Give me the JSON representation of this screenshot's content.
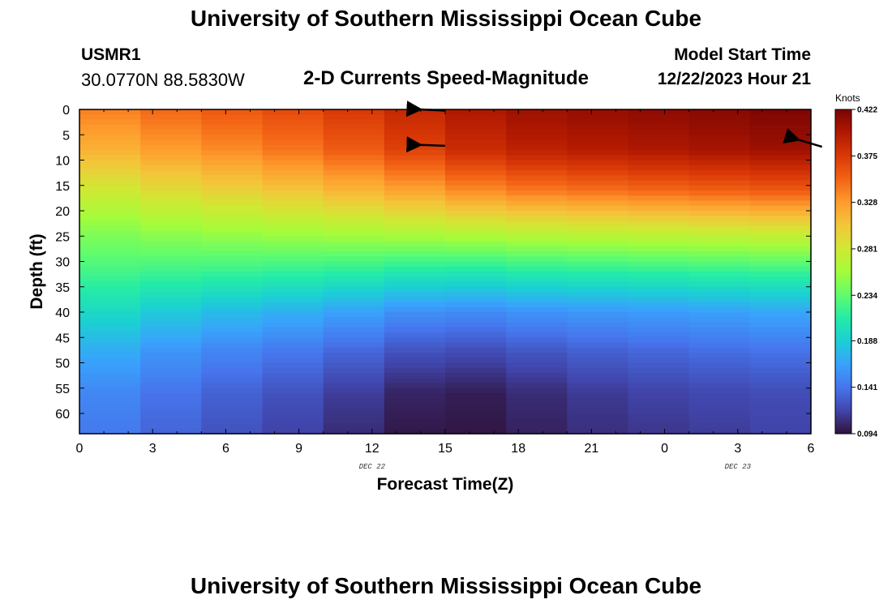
{
  "header": {
    "title": "University of Southern Mississippi Ocean Cube",
    "station": "USMR1",
    "coordinates": "30.0770N  88.5830W",
    "subtitle": "2-D Currents Speed-Magnitude",
    "model_start_label": "Model Start Time",
    "model_start_value": "12/22/2023 Hour 21"
  },
  "footer": {
    "title": "University of Southern Mississippi Ocean Cube"
  },
  "colors": {
    "colormap": [
      "#30123b",
      "#4145ab",
      "#4675ed",
      "#39a2fc",
      "#1bcfd4",
      "#24eca6",
      "#61fc6c",
      "#a4fc3b",
      "#d1e834",
      "#f3c63a",
      "#fe9b2d",
      "#f36315",
      "#d93806",
      "#b11901",
      "#7a0403"
    ]
  },
  "chart_data": {
    "type": "heatmap",
    "title": "2-D Currents Speed-Magnitude",
    "xlabel": "Forecast Time(Z)",
    "ylabel": "Depth (ft)",
    "x_tick_labels": [
      "0",
      "3",
      "6",
      "9",
      "12",
      "15",
      "18",
      "21",
      "0",
      "3",
      "6"
    ],
    "x_date_labels": [
      {
        "label": "DEC 22",
        "hour": 12
      },
      {
        "label": "DEC 23",
        "hour": 27
      }
    ],
    "x_range_hours": [
      0,
      30
    ],
    "y_ticks": [
      0,
      5,
      10,
      15,
      20,
      25,
      30,
      35,
      40,
      45,
      50,
      55,
      60
    ],
    "y_range": [
      0,
      64
    ],
    "colorbar": {
      "label": "Knots",
      "ticks": [
        "0.422",
        "0.375",
        "0.328",
        "0.281",
        "0.234",
        "0.188",
        "0.141",
        "0.094"
      ],
      "min": 0.094,
      "max": 0.422
    },
    "time_hours": [
      0,
      2.5,
      5,
      7.5,
      10,
      12.5,
      15,
      17.5,
      20,
      22.5,
      25,
      27.5,
      30
    ],
    "depth_ft": [
      0,
      8,
      16,
      24,
      32,
      40,
      48,
      56,
      64
    ],
    "speed_knots": [
      [
        0.335,
        0.345,
        0.355,
        0.36,
        0.37,
        0.38,
        0.395,
        0.405,
        0.41,
        0.412,
        0.415,
        0.418,
        0.422
      ],
      [
        0.31,
        0.322,
        0.332,
        0.338,
        0.35,
        0.362,
        0.378,
        0.39,
        0.395,
        0.398,
        0.402,
        0.405,
        0.41
      ],
      [
        0.275,
        0.285,
        0.295,
        0.3,
        0.31,
        0.318,
        0.33,
        0.34,
        0.345,
        0.348,
        0.352,
        0.355,
        0.358
      ],
      [
        0.245,
        0.25,
        0.255,
        0.258,
        0.262,
        0.265,
        0.268,
        0.272,
        0.275,
        0.276,
        0.278,
        0.28,
        0.282
      ],
      [
        0.225,
        0.222,
        0.22,
        0.218,
        0.215,
        0.212,
        0.205,
        0.21,
        0.212,
        0.214,
        0.216,
        0.218,
        0.22
      ],
      [
        0.2,
        0.19,
        0.18,
        0.175,
        0.168,
        0.16,
        0.15,
        0.155,
        0.158,
        0.16,
        0.162,
        0.165,
        0.168
      ],
      [
        0.175,
        0.162,
        0.152,
        0.145,
        0.138,
        0.128,
        0.118,
        0.122,
        0.128,
        0.132,
        0.135,
        0.138,
        0.14
      ],
      [
        0.155,
        0.145,
        0.135,
        0.128,
        0.12,
        0.108,
        0.097,
        0.102,
        0.11,
        0.115,
        0.118,
        0.12,
        0.122
      ],
      [
        0.148,
        0.138,
        0.128,
        0.12,
        0.112,
        0.1,
        0.094,
        0.098,
        0.105,
        0.11,
        0.112,
        0.115,
        0.118
      ]
    ],
    "vectors": [
      {
        "hour": 14.0,
        "depth": 0,
        "dx": 1,
        "dy": -0.05
      },
      {
        "hour": 14.0,
        "depth": 7,
        "dx": 1,
        "dy": -0.04
      },
      {
        "hour": 29.5,
        "depth": 6,
        "dx": 1,
        "dy": -0.3
      }
    ]
  }
}
